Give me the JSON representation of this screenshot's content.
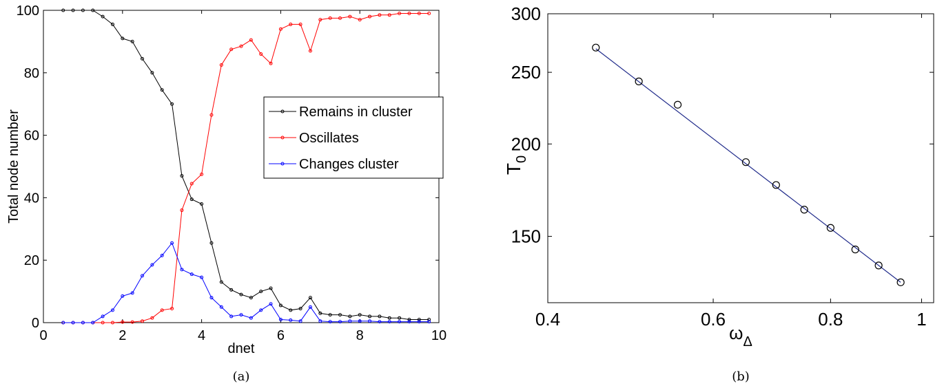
{
  "chart_data": [
    {
      "type": "line",
      "panel_label": "(a)",
      "xlabel": "dnet",
      "ylabel": "Total node number",
      "xlim": [
        0,
        10
      ],
      "ylim": [
        0,
        100
      ],
      "xticks": [
        "0",
        "2",
        "4",
        "6",
        "8",
        "10"
      ],
      "yticks": [
        "0",
        "20",
        "40",
        "60",
        "80",
        "100"
      ],
      "grid": false,
      "legend_position": "center-right",
      "x": [
        0.5,
        0.75,
        1.0,
        1.25,
        1.5,
        1.75,
        2.0,
        2.25,
        2.5,
        2.75,
        3.0,
        3.25,
        3.5,
        3.75,
        4.0,
        4.25,
        4.5,
        4.75,
        5.0,
        5.25,
        5.5,
        5.75,
        6.0,
        6.25,
        6.5,
        6.75,
        7.0,
        7.25,
        7.5,
        7.75,
        8.0,
        8.25,
        8.5,
        8.75,
        9.0,
        9.25,
        9.5,
        9.75
      ],
      "series": [
        {
          "name": "Remains in cluster",
          "color": "#000000",
          "values": [
            100,
            100,
            100,
            100,
            98,
            95.5,
            91,
            90,
            84.5,
            80,
            74.5,
            70,
            47,
            39.5,
            38,
            25.5,
            13,
            10.5,
            9,
            8,
            10,
            11,
            5.5,
            4,
            4.5,
            8,
            3,
            2.5,
            2.5,
            2,
            2.5,
            2,
            2,
            1.5,
            1.5,
            1,
            1,
            1
          ]
        },
        {
          "name": "Oscillates",
          "color": "#ff0000",
          "values": [
            0,
            0,
            0,
            0,
            0,
            0,
            0.2,
            0.2,
            0.5,
            1.5,
            4,
            4.5,
            36,
            44.5,
            47.5,
            66.5,
            82.5,
            87.5,
            88.5,
            90.5,
            86,
            83,
            94,
            95.5,
            95.5,
            87,
            97,
            97.5,
            97.5,
            98,
            97,
            98,
            98.5,
            98.5,
            99,
            99,
            99,
            99
          ]
        },
        {
          "name": "Changes cluster",
          "color": "#0000ff",
          "values": [
            0,
            0,
            0,
            0,
            2,
            4,
            8.5,
            9.5,
            15,
            18.5,
            21.5,
            25.5,
            17,
            15.5,
            14.5,
            8,
            5,
            2,
            2.5,
            1.5,
            4,
            6,
            1,
            0.8,
            0.5,
            5,
            0.5,
            0.3,
            0.3,
            0.5,
            0.5,
            0.5,
            0.3,
            0.3,
            0.3,
            0.3,
            0.3,
            0.3
          ]
        }
      ]
    },
    {
      "type": "scatter",
      "panel_label": "(b)",
      "xlabel": "ω",
      "xlabel_subscript": "Δ",
      "ylabel": "T",
      "ylabel_subscript": "0",
      "xscale": "log",
      "yscale": "log",
      "xlim": [
        0.4,
        1.03
      ],
      "ylim": [
        122,
        300
      ],
      "xticks": [
        "0.4",
        "0.6",
        "0.8",
        "1"
      ],
      "yticks": [
        "150",
        "200",
        "250",
        "300"
      ],
      "grid": false,
      "series": [
        {
          "name": "",
          "marker": "circle",
          "color": "#000000",
          "x": [
            0.45,
            0.5,
            0.55,
            0.65,
            0.7,
            0.75,
            0.8,
            0.85,
            0.9,
            0.95
          ],
          "values": [
            270,
            243,
            226,
            189,
            176,
            163,
            154,
            144,
            137,
            130
          ]
        },
        {
          "name": "",
          "type": "line",
          "color": "#1f2a8a",
          "x": [
            0.45,
            0.95
          ],
          "values": [
            269,
            130
          ]
        }
      ]
    }
  ]
}
